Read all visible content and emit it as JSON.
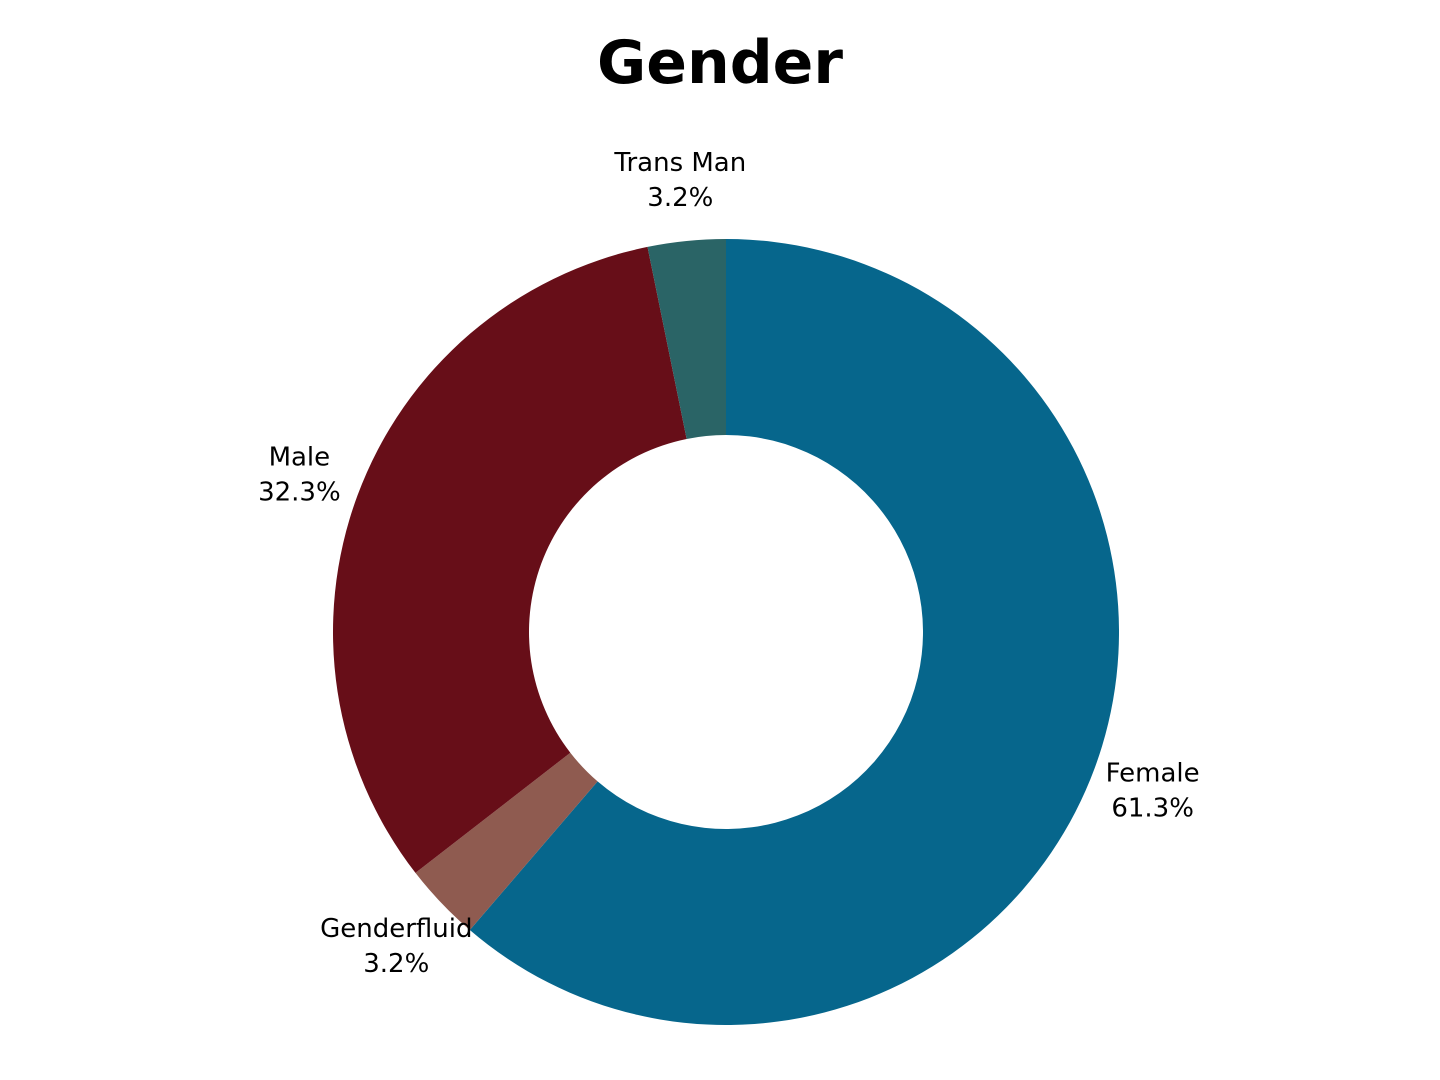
{
  "chart_data": {
    "type": "pie",
    "variant": "donut",
    "title": "Gender",
    "slices": [
      {
        "label": "Female",
        "percent": 61.3,
        "percent_label": "61.3%",
        "color": "#06668C"
      },
      {
        "label": "Genderfluid",
        "percent": 3.2,
        "percent_label": "3.2%",
        "color": "#8F5B50"
      },
      {
        "label": "Male",
        "percent": 32.3,
        "percent_label": "32.3%",
        "color": "#670E18"
      },
      {
        "label": "Trans Man",
        "percent": 3.2,
        "percent_label": "3.2%",
        "color": "#2A6466"
      }
    ],
    "start_angle": "12 o'clock",
    "direction": "clockwise",
    "legend": "none",
    "labels": "outside"
  }
}
